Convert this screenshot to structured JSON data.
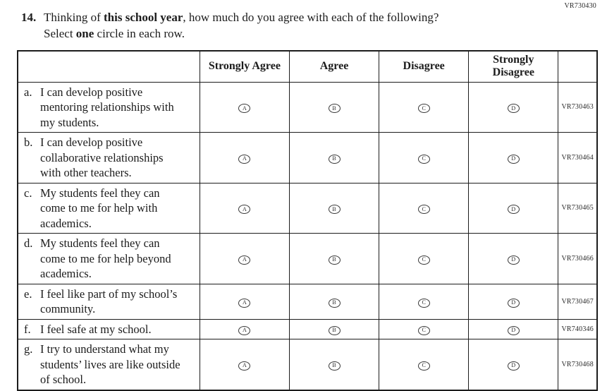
{
  "page": {
    "corner_code": "VR730430"
  },
  "question": {
    "number": "14.",
    "line1_part1": "Thinking of ",
    "line1_bold": "this school year",
    "line1_part2": ", how much do you agree with each of the following?",
    "line2_part1": "Select ",
    "line2_bold": "one",
    "line2_part2": " circle in each row."
  },
  "table": {
    "headers": {
      "strongly_agree": "Strongly Agree",
      "agree": "Agree",
      "disagree": "Disagree",
      "strongly_disagree": "Strongly Disagree"
    },
    "options": [
      "A",
      "B",
      "C",
      "D"
    ],
    "rows": [
      {
        "letter": "a.",
        "text": "I can develop positive mentoring relationships with my students.",
        "code": "VR730463"
      },
      {
        "letter": "b.",
        "text": "I can develop positive collaborative relationships with other teachers.",
        "code": "VR730464"
      },
      {
        "letter": "c.",
        "text": "My students feel they can come to me for help with academics.",
        "code": "VR730465"
      },
      {
        "letter": "d.",
        "text": "My students feel they can come to me for help beyond academics.",
        "code": "VR730466"
      },
      {
        "letter": "e.",
        "text": "I feel like part of my school’s community.",
        "code": "VR730467"
      },
      {
        "letter": "f.",
        "text": "I feel safe at my school.",
        "code": "VR740346"
      },
      {
        "letter": "g.",
        "text": "I try to understand what my students’ lives are like outside of school.",
        "code": "VR730468"
      }
    ]
  }
}
